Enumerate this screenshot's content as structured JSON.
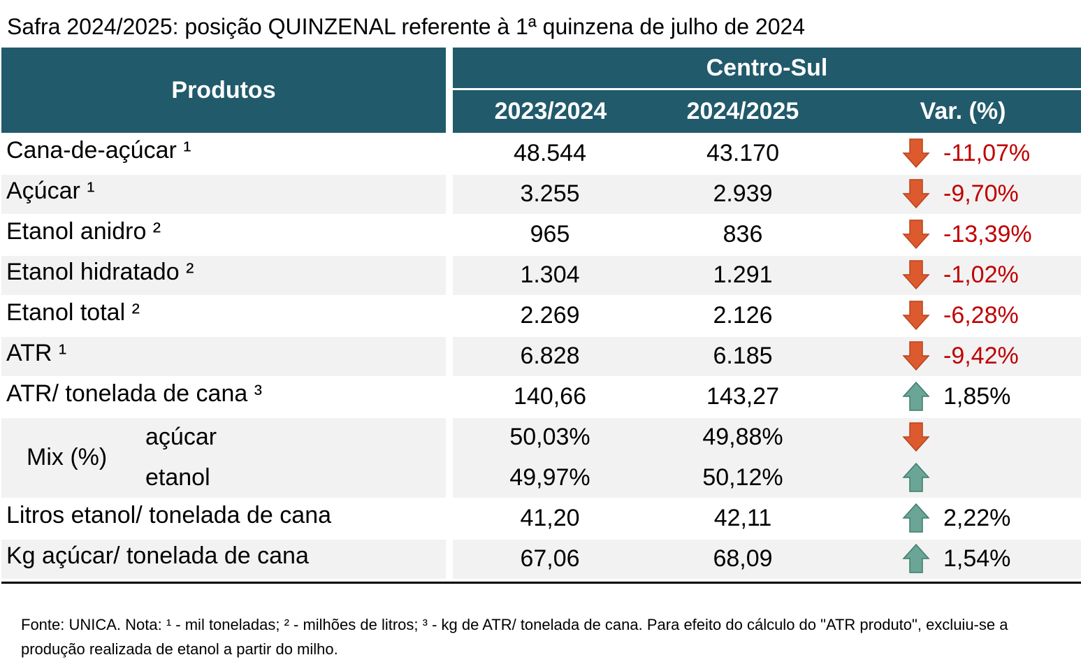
{
  "header": {
    "title": "Safra 2024/2025: posição QUINZENAL referente à 1ª quinzena de julho de 2024"
  },
  "table": {
    "products_header": "Produtos",
    "region": "Centro-Sul",
    "columns": [
      "2023/2024",
      "2024/2025",
      "Var. (%)"
    ],
    "rows": [
      {
        "label": "Cana-de-açúcar ¹",
        "cells": [
          "48.544",
          "43.170",
          "-11,07%"
        ],
        "trend": "down"
      },
      {
        "label": "Açúcar ¹",
        "cells": [
          "3.255",
          "2.939",
          "-9,70%"
        ],
        "trend": "down"
      },
      {
        "label": "Etanol anidro ²",
        "cells": [
          "965",
          "836",
          "-13,39%"
        ],
        "trend": "down"
      },
      {
        "label": "Etanol hidratado ²",
        "cells": [
          "1.304",
          "1.291",
          "-1,02%"
        ],
        "trend": "down"
      },
      {
        "label": "Etanol total ²",
        "cells": [
          "2.269",
          "2.126",
          "-6,28%"
        ],
        "trend": "down"
      },
      {
        "label": "ATR ¹",
        "cells": [
          "6.828",
          "6.185",
          "-9,42%"
        ],
        "trend": "down"
      },
      {
        "label": "ATR/ tonelada de cana ³",
        "cells": [
          "140,66",
          "143,27",
          "1,85%"
        ],
        "trend": "up"
      },
      {
        "label": "Mix (%)",
        "sub": [
          {
            "label": "açúcar",
            "cells": [
              "50,03%",
              "49,88%"
            ],
            "trend": "down"
          },
          {
            "label": "etanol",
            "cells": [
              "49,97%",
              "50,12%"
            ],
            "trend": "up"
          }
        ]
      },
      {
        "label": "Litros etanol/ tonelada de cana",
        "cells": [
          "41,20",
          "42,11",
          "2,22%"
        ],
        "trend": "up"
      },
      {
        "label": "Kg açúcar/ tonelada de cana",
        "cells": [
          "67,06",
          "68,09",
          "1,54%"
        ],
        "trend": "up"
      }
    ]
  },
  "footer": {
    "note": "Fonte: UNICA. Nota: ¹ - mil toneladas; ² - milhões de litros; ³ - kg de ATR/ tonelada de cana. Para efeito do cálculo do \"ATR produto\", excluiu-se a produção realizada de etanol a partir do milho."
  }
}
